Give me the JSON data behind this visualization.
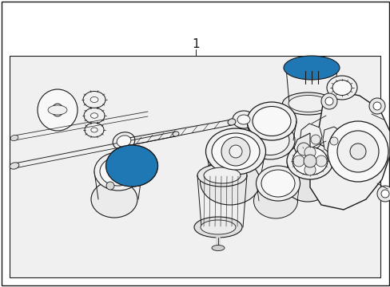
{
  "label_number": "1",
  "label_fontsize": 11,
  "fig_width": 4.89,
  "fig_height": 3.6,
  "dpi": 100,
  "bg_color": "#f0f0f0",
  "ec": "#1a1a1a",
  "lw_main": 0.8
}
